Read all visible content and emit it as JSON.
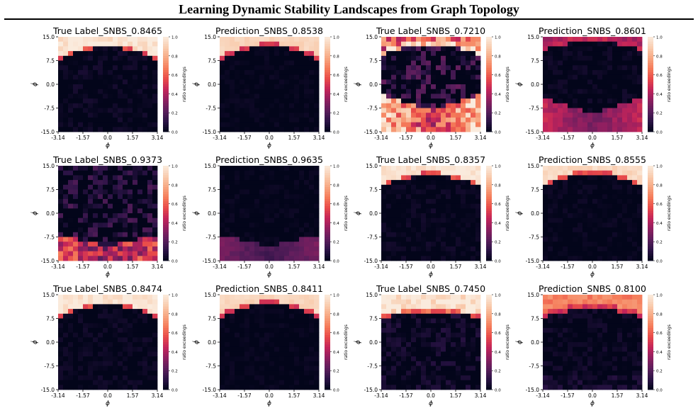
{
  "figure": {
    "title": "Learning Dynamic Stability Landscapes from Graph Topology",
    "xlabel": "ϕ",
    "ylabel": "ϕ̇",
    "colorbar_label": "ratio exceedings",
    "xticks": [
      "-3.14",
      "-1.57",
      "0.0",
      "1.57",
      "3.14"
    ],
    "yticks": [
      "15.0",
      "7.5",
      "0.0",
      "-7.5",
      "-15.0"
    ],
    "cbar_ticks": [
      "1.0",
      "0.8",
      "0.6",
      "0.4",
      "0.2",
      "0.0"
    ],
    "colormap": [
      "#03051a",
      "#2b1346",
      "#5c1e5c",
      "#8e1f60",
      "#c3245a",
      "#e84a49",
      "#f57c5a",
      "#f7a883",
      "#f9cdb0",
      "#faebdd"
    ]
  },
  "chart_data": [
    {
      "type": "heatmap",
      "title": "True Label_SNBS_0.8465",
      "xlim": [
        -3.14,
        3.14
      ],
      "ylim": [
        -15.0,
        15.0
      ],
      "zlim": [
        0,
        1
      ],
      "pattern": {
        "boundary": 7.2,
        "arc": 4.5,
        "band": 0.9,
        "top": 0.97,
        "edge": 0.55,
        "bottom": 0.0,
        "bottom_width": 0,
        "noise": 0.06
      }
    },
    {
      "type": "heatmap",
      "title": "Prediction_SNBS_0.8538",
      "xlim": [
        -3.14,
        3.14
      ],
      "ylim": [
        -15.0,
        15.0
      ],
      "zlim": [
        0,
        1
      ],
      "pattern": {
        "boundary": 7.5,
        "arc": 4.3,
        "band": 1.2,
        "top": 0.92,
        "edge": 0.5,
        "bottom": 0.0,
        "bottom_width": 0,
        "noise": 0.03
      }
    },
    {
      "type": "heatmap",
      "title": "True Label_SNBS_0.7210",
      "xlim": [
        -3.14,
        3.14
      ],
      "ylim": [
        -15.0,
        15.0
      ],
      "zlim": [
        0,
        1
      ],
      "pattern": {
        "boundary": 9.0,
        "arc": 3.5,
        "band": 1.5,
        "top": 0.6,
        "edge": 0.9,
        "bottom": 0.9,
        "bottom_width": 6.5,
        "noise": 0.25
      }
    },
    {
      "type": "heatmap",
      "title": "Prediction_SNBS_0.8601",
      "xlim": [
        -3.14,
        3.14
      ],
      "ylim": [
        -15.0,
        15.0
      ],
      "zlim": [
        0,
        1
      ],
      "pattern": {
        "boundary": 11.0,
        "arc": 2.5,
        "band": 1.5,
        "top": 0.4,
        "edge": 0.45,
        "bottom": 0.45,
        "bottom_width": 6.0,
        "noise": 0.05
      }
    },
    {
      "type": "heatmap",
      "title": "True Label_SNBS_0.9373",
      "xlim": [
        -3.14,
        3.14
      ],
      "ylim": [
        -15.0,
        15.0
      ],
      "zlim": [
        0,
        1
      ],
      "pattern": {
        "boundary": 16.0,
        "arc": 0.0,
        "band": 1.0,
        "top": 0.05,
        "edge": 0.1,
        "bottom": 0.55,
        "bottom_width": 4.5,
        "noise": 0.2
      }
    },
    {
      "type": "heatmap",
      "title": "Prediction_SNBS_0.9635",
      "xlim": [
        -3.14,
        3.14
      ],
      "ylim": [
        -15.0,
        15.0
      ],
      "zlim": [
        0,
        1
      ],
      "pattern": {
        "boundary": 16.0,
        "arc": 0.0,
        "band": 1.0,
        "top": 0.05,
        "edge": 0.08,
        "bottom": 0.28,
        "bottom_width": 4.5,
        "noise": 0.03
      }
    },
    {
      "type": "heatmap",
      "title": "True Label_SNBS_0.8357",
      "xlim": [
        -3.14,
        3.14
      ],
      "ylim": [
        -15.0,
        15.0
      ],
      "zlim": [
        0,
        1
      ],
      "pattern": {
        "boundary": 8.0,
        "arc": 4.0,
        "band": 0.9,
        "top": 0.97,
        "edge": 0.55,
        "bottom": 0.0,
        "bottom_width": 0,
        "noise": 0.05
      }
    },
    {
      "type": "heatmap",
      "title": "Prediction_SNBS_0.8555",
      "xlim": [
        -3.14,
        3.14
      ],
      "ylim": [
        -15.0,
        15.0
      ],
      "zlim": [
        0,
        1
      ],
      "pattern": {
        "boundary": 8.0,
        "arc": 4.2,
        "band": 1.2,
        "top": 0.93,
        "edge": 0.55,
        "bottom": 0.0,
        "bottom_width": 0,
        "noise": 0.04
      }
    },
    {
      "type": "heatmap",
      "title": "True Label_SNBS_0.8474",
      "xlim": [
        -3.14,
        3.14
      ],
      "ylim": [
        -15.0,
        15.0
      ],
      "zlim": [
        0,
        1
      ],
      "pattern": {
        "boundary": 7.2,
        "arc": 4.5,
        "band": 0.9,
        "top": 0.97,
        "edge": 0.55,
        "bottom": 0.0,
        "bottom_width": 0,
        "noise": 0.05
      }
    },
    {
      "type": "heatmap",
      "title": "Prediction_SNBS_0.8411",
      "xlim": [
        -3.14,
        3.14
      ],
      "ylim": [
        -15.0,
        15.0
      ],
      "zlim": [
        0,
        1
      ],
      "pattern": {
        "boundary": 7.5,
        "arc": 4.3,
        "band": 1.2,
        "top": 0.92,
        "edge": 0.5,
        "bottom": 0.0,
        "bottom_width": 0,
        "noise": 0.03
      }
    },
    {
      "type": "heatmap",
      "title": "True Label_SNBS_0.7450",
      "xlim": [
        -3.14,
        3.14
      ],
      "ylim": [
        -15.0,
        15.0
      ],
      "zlim": [
        0,
        1
      ],
      "pattern": {
        "boundary": 7.2,
        "arc": 2.5,
        "band": 1.0,
        "top": 0.96,
        "edge": 0.6,
        "bottom": 0.0,
        "bottom_width": 0,
        "noise": 0.1
      }
    },
    {
      "type": "heatmap",
      "title": "Prediction_SNBS_0.8100",
      "xlim": [
        -3.14,
        3.14
      ],
      "ylim": [
        -15.0,
        15.0
      ],
      "zlim": [
        0,
        1
      ],
      "pattern": {
        "boundary": 7.5,
        "arc": 3.0,
        "band": 1.5,
        "top": 0.68,
        "edge": 0.5,
        "bottom": 0.05,
        "bottom_width": 3.0,
        "noise": 0.06
      }
    }
  ]
}
